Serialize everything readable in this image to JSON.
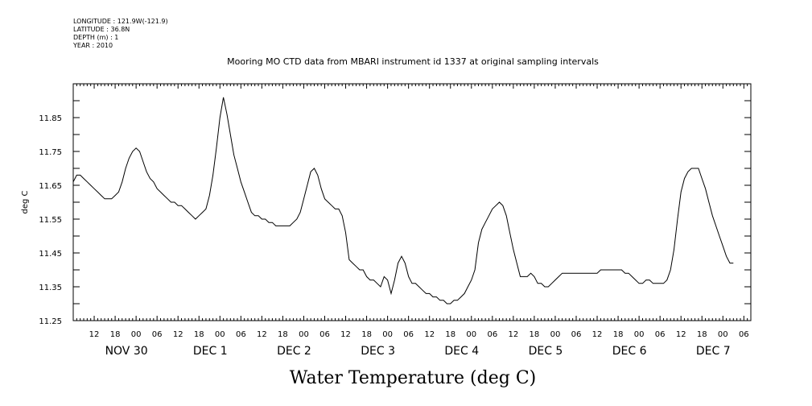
{
  "header": {
    "lines": [
      "LONGITUDE : 121.9W(-121.9)",
      "LATITUDE : 36.8N",
      "DEPTH (m) : 1",
      "YEAR : 2010"
    ]
  },
  "chart_data": {
    "type": "line",
    "title": "Mooring MO CTD data from MBARI instrument id 1337 at original sampling intervals",
    "xlabel": "Water Temperature (deg C)",
    "ylabel": "deg C",
    "ylim": [
      11.25,
      11.95
    ],
    "y_ticks": [
      "11.25",
      "11.35",
      "11.45",
      "11.55",
      "11.65",
      "11.75",
      "11.85"
    ],
    "x_unit": "hours since Nov 29 06:00",
    "xlim": [
      0,
      194
    ],
    "hour_ticks": [
      "12",
      "18",
      "00",
      "06",
      "12",
      "18",
      "00",
      "06",
      "12",
      "18",
      "00",
      "06",
      "12",
      "18",
      "00",
      "06",
      "12",
      "18",
      "00",
      "06",
      "12",
      "18",
      "00",
      "06",
      "12",
      "18",
      "00",
      "06",
      "12",
      "18",
      "00",
      "06"
    ],
    "day_labels": [
      "NOV 30",
      "DEC  1",
      "DEC  2",
      "DEC  3",
      "DEC  4",
      "DEC  5",
      "DEC  6",
      "DEC  7"
    ],
    "grid": false,
    "series": [
      {
        "points": [
          [
            0,
            11.66
          ],
          [
            1,
            11.68
          ],
          [
            2,
            11.68
          ],
          [
            3,
            11.67
          ],
          [
            4,
            11.66
          ],
          [
            5,
            11.65
          ],
          [
            6,
            11.64
          ],
          [
            7,
            11.63
          ],
          [
            8,
            11.62
          ],
          [
            9,
            11.61
          ],
          [
            10,
            11.61
          ],
          [
            11,
            11.61
          ],
          [
            12,
            11.62
          ],
          [
            13,
            11.63
          ],
          [
            14,
            11.66
          ],
          [
            15,
            11.7
          ],
          [
            16,
            11.73
          ],
          [
            17,
            11.75
          ],
          [
            18,
            11.76
          ],
          [
            19,
            11.75
          ],
          [
            20,
            11.72
          ],
          [
            21,
            11.69
          ],
          [
            22,
            11.67
          ],
          [
            23,
            11.66
          ],
          [
            24,
            11.64
          ],
          [
            25,
            11.63
          ],
          [
            26,
            11.62
          ],
          [
            27,
            11.61
          ],
          [
            28,
            11.6
          ],
          [
            29,
            11.6
          ],
          [
            30,
            11.59
          ],
          [
            31,
            11.59
          ],
          [
            32,
            11.58
          ],
          [
            33,
            11.57
          ],
          [
            34,
            11.56
          ],
          [
            35,
            11.55
          ],
          [
            36,
            11.56
          ],
          [
            37,
            11.57
          ],
          [
            38,
            11.58
          ],
          [
            39,
            11.62
          ],
          [
            40,
            11.68
          ],
          [
            41,
            11.76
          ],
          [
            42,
            11.85
          ],
          [
            43,
            11.91
          ],
          [
            44,
            11.86
          ],
          [
            45,
            11.8
          ],
          [
            46,
            11.74
          ],
          [
            47,
            11.7
          ],
          [
            48,
            11.66
          ],
          [
            49,
            11.63
          ],
          [
            50,
            11.6
          ],
          [
            51,
            11.57
          ],
          [
            52,
            11.56
          ],
          [
            53,
            11.56
          ],
          [
            54,
            11.55
          ],
          [
            55,
            11.55
          ],
          [
            56,
            11.54
          ],
          [
            57,
            11.54
          ],
          [
            58,
            11.53
          ],
          [
            59,
            11.53
          ],
          [
            60,
            11.53
          ],
          [
            61,
            11.53
          ],
          [
            62,
            11.53
          ],
          [
            63,
            11.54
          ],
          [
            64,
            11.55
          ],
          [
            65,
            11.57
          ],
          [
            66,
            11.61
          ],
          [
            67,
            11.65
          ],
          [
            68,
            11.69
          ],
          [
            69,
            11.7
          ],
          [
            70,
            11.68
          ],
          [
            71,
            11.64
          ],
          [
            72,
            11.61
          ],
          [
            73,
            11.6
          ],
          [
            74,
            11.59
          ],
          [
            75,
            11.58
          ],
          [
            76,
            11.58
          ],
          [
            77,
            11.56
          ],
          [
            78,
            11.51
          ],
          [
            79,
            11.43
          ],
          [
            80,
            11.42
          ],
          [
            81,
            11.41
          ],
          [
            82,
            11.4
          ],
          [
            83,
            11.4
          ],
          [
            84,
            11.38
          ],
          [
            85,
            11.37
          ],
          [
            86,
            11.37
          ],
          [
            87,
            11.36
          ],
          [
            88,
            11.35
          ],
          [
            89,
            11.38
          ],
          [
            90,
            11.37
          ],
          [
            91,
            11.33
          ],
          [
            92,
            11.37
          ],
          [
            93,
            11.42
          ],
          [
            94,
            11.44
          ],
          [
            95,
            11.42
          ],
          [
            96,
            11.38
          ],
          [
            97,
            11.36
          ],
          [
            98,
            11.36
          ],
          [
            99,
            11.35
          ],
          [
            100,
            11.34
          ],
          [
            101,
            11.33
          ],
          [
            102,
            11.33
          ],
          [
            103,
            11.32
          ],
          [
            104,
            11.32
          ],
          [
            105,
            11.31
          ],
          [
            106,
            11.31
          ],
          [
            107,
            11.3
          ],
          [
            108,
            11.3
          ],
          [
            109,
            11.31
          ],
          [
            110,
            11.31
          ],
          [
            111,
            11.32
          ],
          [
            112,
            11.33
          ],
          [
            113,
            11.35
          ],
          [
            114,
            11.37
          ],
          [
            115,
            11.4
          ],
          [
            116,
            11.48
          ],
          [
            117,
            11.52
          ],
          [
            118,
            11.54
          ],
          [
            119,
            11.56
          ],
          [
            120,
            11.58
          ],
          [
            121,
            11.59
          ],
          [
            122,
            11.6
          ],
          [
            123,
            11.59
          ],
          [
            124,
            11.56
          ],
          [
            125,
            11.51
          ],
          [
            126,
            11.46
          ],
          [
            127,
            11.42
          ],
          [
            128,
            11.38
          ],
          [
            129,
            11.38
          ],
          [
            130,
            11.38
          ],
          [
            131,
            11.39
          ],
          [
            132,
            11.38
          ],
          [
            133,
            11.36
          ],
          [
            134,
            11.36
          ],
          [
            135,
            11.35
          ],
          [
            136,
            11.35
          ],
          [
            137,
            11.36
          ],
          [
            138,
            11.37
          ],
          [
            139,
            11.38
          ],
          [
            140,
            11.39
          ],
          [
            141,
            11.39
          ],
          [
            142,
            11.39
          ],
          [
            143,
            11.39
          ],
          [
            144,
            11.39
          ],
          [
            145,
            11.39
          ],
          [
            146,
            11.39
          ],
          [
            147,
            11.39
          ],
          [
            148,
            11.39
          ],
          [
            149,
            11.39
          ],
          [
            150,
            11.39
          ],
          [
            151,
            11.4
          ],
          [
            152,
            11.4
          ],
          [
            153,
            11.4
          ],
          [
            154,
            11.4
          ],
          [
            155,
            11.4
          ],
          [
            156,
            11.4
          ],
          [
            157,
            11.4
          ],
          [
            158,
            11.39
          ],
          [
            159,
            11.39
          ],
          [
            160,
            11.38
          ],
          [
            161,
            11.37
          ],
          [
            162,
            11.36
          ],
          [
            163,
            11.36
          ],
          [
            164,
            11.37
          ],
          [
            165,
            11.37
          ],
          [
            166,
            11.36
          ],
          [
            167,
            11.36
          ],
          [
            168,
            11.36
          ],
          [
            169,
            11.36
          ],
          [
            170,
            11.37
          ],
          [
            171,
            11.4
          ],
          [
            172,
            11.46
          ],
          [
            173,
            11.55
          ],
          [
            174,
            11.63
          ],
          [
            175,
            11.67
          ],
          [
            176,
            11.69
          ],
          [
            177,
            11.7
          ],
          [
            178,
            11.7
          ],
          [
            179,
            11.7
          ],
          [
            180,
            11.67
          ],
          [
            181,
            11.64
          ],
          [
            182,
            11.6
          ],
          [
            183,
            11.56
          ],
          [
            184,
            11.53
          ],
          [
            185,
            11.5
          ],
          [
            186,
            11.47
          ],
          [
            187,
            11.44
          ],
          [
            188,
            11.42
          ],
          [
            189,
            11.42
          ]
        ]
      }
    ]
  }
}
